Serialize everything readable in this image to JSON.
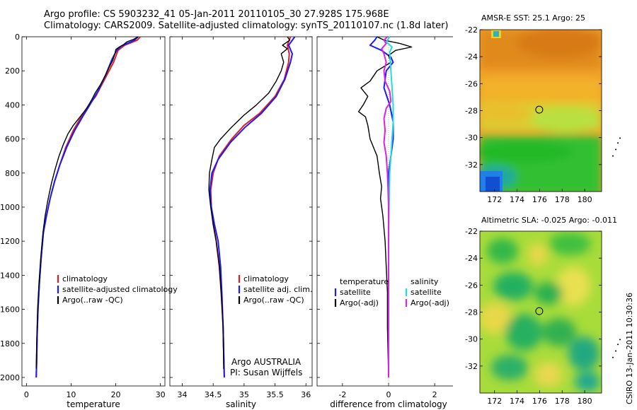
{
  "header": {
    "line1": "Argo profile: CS 5903232_41 05-Jan-2011 20110105_30 27.928S 175.968E",
    "line2": "Climatology: CARS2009. Satellite-adjusted climatology: synTS_20110107.nc (1.8d later)"
  },
  "credit": {
    "program": "Argo AUSTRALIA",
    "pi": "PI: Susan Wijffels"
  },
  "footer_stamp": "CSIRO 13-Jan-2011 10:30:36",
  "maps": {
    "sst_title": "AMSR-E SST: 25.1 Argo: 25",
    "sla_title": "Altimetric SLA: -0.025 Argo: -0.011",
    "lon_ticks": [
      "172",
      "174",
      "176",
      "178",
      "180"
    ],
    "lat_ticks": [
      "-22",
      "-24",
      "-26",
      "-28",
      "-30",
      "-32"
    ],
    "float_position": {
      "lon": 175.968,
      "lat": -27.928
    }
  },
  "colors": {
    "climatology": "#e02020",
    "satellite": "#1a1aff",
    "argo": "#000000",
    "sal_satellite": "#22dddd",
    "sal_argo": "#dd22dd"
  },
  "chart_data": [
    {
      "type": "line",
      "xlabel": "temperature",
      "ylabel": "",
      "xlim": [
        -1,
        31
      ],
      "ylim": [
        2050,
        0
      ],
      "xticks": [
        "0",
        "10",
        "20",
        "30"
      ],
      "yticks": [
        "0",
        "200",
        "400",
        "600",
        "800",
        "1000",
        "1200",
        "1400",
        "1600",
        "1800",
        "2000"
      ],
      "legend": {
        "placement": "bottom-right",
        "entries": [
          "climatology",
          "satellite-adjusted climatology",
          "Argo(..raw -QC)"
        ]
      },
      "series": [
        {
          "name": "climatology",
          "color": "#e02020",
          "points": [
            [
              25.5,
              0
            ],
            [
              24.8,
              20
            ],
            [
              22,
              50
            ],
            [
              20.5,
              80
            ],
            [
              19.5,
              150
            ],
            [
              17.5,
              250
            ],
            [
              15.5,
              350
            ],
            [
              14,
              400
            ],
            [
              12.5,
              460
            ],
            [
              10.5,
              550
            ],
            [
              8.8,
              650
            ],
            [
              7.5,
              750
            ],
            [
              6.3,
              850
            ],
            [
              5.3,
              950
            ],
            [
              4.5,
              1050
            ],
            [
              3.8,
              1150
            ],
            [
              3.3,
              1300
            ],
            [
              2.9,
              1450
            ],
            [
              2.6,
              1600
            ],
            [
              2.4,
              1750
            ],
            [
              2.3,
              1900
            ],
            [
              2.2,
              2000
            ]
          ]
        },
        {
          "name": "satellite-adjusted climatology",
          "color": "#1a1aff",
          "points": [
            [
              25,
              0
            ],
            [
              24.2,
              20
            ],
            [
              21.2,
              55
            ],
            [
              20.2,
              80
            ],
            [
              19.2,
              130
            ],
            [
              17.8,
              220
            ],
            [
              16,
              320
            ],
            [
              14.2,
              400
            ],
            [
              12.8,
              460
            ],
            [
              10.8,
              550
            ],
            [
              9,
              650
            ],
            [
              7.5,
              750
            ],
            [
              6.3,
              850
            ],
            [
              5.3,
              950
            ],
            [
              4.5,
              1050
            ],
            [
              3.8,
              1150
            ],
            [
              3.3,
              1300
            ],
            [
              2.9,
              1450
            ],
            [
              2.6,
              1600
            ],
            [
              2.4,
              1750
            ],
            [
              2.3,
              1900
            ],
            [
              2.2,
              2000
            ]
          ]
        },
        {
          "name": "Argo(..raw -QC)",
          "color": "#000000",
          "points": [
            [
              25,
              0
            ],
            [
              24,
              15
            ],
            [
              22.5,
              30
            ],
            [
              21.8,
              45
            ],
            [
              20.8,
              60
            ],
            [
              20,
              75
            ],
            [
              19.8,
              100
            ],
            [
              19.3,
              140
            ],
            [
              18.5,
              180
            ],
            [
              17.6,
              230
            ],
            [
              16.6,
              280
            ],
            [
              15.4,
              330
            ],
            [
              14.6,
              370
            ],
            [
              13.5,
              420
            ],
            [
              12,
              470
            ],
            [
              10.5,
              520
            ],
            [
              9.3,
              570
            ],
            [
              8.3,
              630
            ],
            [
              7.3,
              700
            ],
            [
              6.4,
              780
            ],
            [
              5.6,
              860
            ],
            [
              4.8,
              960
            ],
            [
              4.2,
              1050
            ],
            [
              3.7,
              1150
            ],
            [
              3.2,
              1300
            ],
            [
              2.8,
              1450
            ],
            [
              2.5,
              1600
            ],
            [
              2.3,
              1800
            ],
            [
              2.2,
              1950
            ]
          ]
        }
      ]
    },
    {
      "type": "line",
      "xlabel": "salinity",
      "ylabel": "",
      "xlim": [
        33.8,
        36.1
      ],
      "ylim": [
        2050,
        0
      ],
      "xticks": [
        "34",
        "34.5",
        "35",
        "35.5",
        "36"
      ],
      "legend": {
        "placement": "bottom-right",
        "entries": [
          "climatology",
          "satellite adj. clim.",
          "Argo(..raw -QC)"
        ]
      },
      "series": [
        {
          "name": "climatology",
          "color": "#e02020",
          "points": [
            [
              35.75,
              0
            ],
            [
              35.7,
              50
            ],
            [
              35.73,
              100
            ],
            [
              35.72,
              150
            ],
            [
              35.65,
              250
            ],
            [
              35.5,
              350
            ],
            [
              35.25,
              450
            ],
            [
              35,
              520
            ],
            [
              34.8,
              600
            ],
            [
              34.6,
              700
            ],
            [
              34.5,
              800
            ],
            [
              34.46,
              900
            ],
            [
              34.47,
              1000
            ],
            [
              34.5,
              1100
            ],
            [
              34.55,
              1200
            ],
            [
              34.6,
              1350
            ],
            [
              34.63,
              1500
            ],
            [
              34.66,
              1700
            ],
            [
              34.68,
              2000
            ]
          ]
        },
        {
          "name": "satellite adj. clim.",
          "color": "#1a1aff",
          "points": [
            [
              35.82,
              0
            ],
            [
              35.72,
              50
            ],
            [
              35.78,
              100
            ],
            [
              35.75,
              150
            ],
            [
              35.66,
              250
            ],
            [
              35.52,
              350
            ],
            [
              35.28,
              450
            ],
            [
              35.02,
              530
            ],
            [
              34.78,
              620
            ],
            [
              34.58,
              720
            ],
            [
              34.48,
              800
            ],
            [
              34.45,
              900
            ],
            [
              34.47,
              1000
            ],
            [
              34.52,
              1100
            ],
            [
              34.58,
              1200
            ],
            [
              34.62,
              1350
            ],
            [
              34.64,
              1500
            ],
            [
              34.66,
              1700
            ],
            [
              34.68,
              2000
            ]
          ]
        },
        {
          "name": "Argo(..raw -QC)",
          "color": "#000000",
          "points": [
            [
              35.7,
              0
            ],
            [
              35.74,
              20
            ],
            [
              35.62,
              50
            ],
            [
              35.7,
              70
            ],
            [
              35.6,
              100
            ],
            [
              35.64,
              150
            ],
            [
              35.6,
              200
            ],
            [
              35.52,
              260
            ],
            [
              35.4,
              330
            ],
            [
              35.2,
              400
            ],
            [
              35,
              460
            ],
            [
              34.8,
              530
            ],
            [
              34.62,
              600
            ],
            [
              34.52,
              650
            ],
            [
              34.48,
              720
            ],
            [
              34.44,
              800
            ],
            [
              34.43,
              900
            ],
            [
              34.46,
              1000
            ],
            [
              34.5,
              1100
            ],
            [
              34.55,
              1200
            ],
            [
              34.6,
              1350
            ],
            [
              34.63,
              1500
            ],
            [
              34.66,
              1700
            ],
            [
              34.67,
              1950
            ]
          ]
        }
      ]
    },
    {
      "type": "line",
      "xlabel": "difference from climatology",
      "ylabel": "",
      "xlim": [
        -3.1,
        3.1
      ],
      "ylim": [
        2050,
        0
      ],
      "xticks": [
        "-2",
        "0",
        "2"
      ],
      "legend": {
        "placement": "bottom",
        "groups": [
          {
            "title": "temperature",
            "entries": [
              "satellite",
              "Argo(-adj)"
            ]
          },
          {
            "title": "salinity",
            "entries": [
              "satellite",
              "Argo(-adj)"
            ]
          }
        ]
      },
      "series": [
        {
          "name": "temperature satellite",
          "color": "#1a1aff",
          "points": [
            [
              -0.5,
              0
            ],
            [
              -0.6,
              20
            ],
            [
              -0.8,
              50
            ],
            [
              -0.3,
              80
            ],
            [
              0.1,
              120
            ],
            [
              0.2,
              150
            ],
            [
              -0.1,
              200
            ],
            [
              -0.2,
              300
            ],
            [
              0.05,
              400
            ],
            [
              0.2,
              500
            ],
            [
              0.2,
              600
            ],
            [
              0.1,
              700
            ],
            [
              0,
              800
            ],
            [
              0,
              900
            ],
            [
              0,
              1000
            ],
            [
              0,
              1200
            ],
            [
              0,
              1500
            ],
            [
              0,
              1800
            ],
            [
              0,
              2000
            ]
          ]
        },
        {
          "name": "temperature Argo(-adj)",
          "color": "#000000",
          "points": [
            [
              -0.5,
              0
            ],
            [
              -0.2,
              20
            ],
            [
              0.5,
              40
            ],
            [
              1.0,
              60
            ],
            [
              0.3,
              80
            ],
            [
              0,
              110
            ],
            [
              0.1,
              150
            ],
            [
              -0.5,
              200
            ],
            [
              -0.8,
              260
            ],
            [
              -1.2,
              300
            ],
            [
              -0.9,
              350
            ],
            [
              -1.1,
              400
            ],
            [
              -1.3,
              440
            ],
            [
              -1.0,
              470
            ],
            [
              -0.9,
              520
            ],
            [
              -0.8,
              600
            ],
            [
              -0.5,
              700
            ],
            [
              -0.4,
              800
            ],
            [
              -0.3,
              880
            ],
            [
              -0.35,
              950
            ],
            [
              -0.25,
              1050
            ],
            [
              -0.15,
              1200
            ],
            [
              -0.1,
              1350
            ],
            [
              -0.05,
              1500
            ],
            [
              -0.05,
              1700
            ],
            [
              0,
              2000
            ]
          ]
        },
        {
          "name": "salinity satellite",
          "color": "#22dddd",
          "points": [
            [
              0.05,
              0
            ],
            [
              -0.1,
              30
            ],
            [
              0.15,
              60
            ],
            [
              0.05,
              90
            ],
            [
              0.08,
              150
            ],
            [
              0.1,
              200
            ],
            [
              0.15,
              300
            ],
            [
              0.2,
              400
            ],
            [
              0.2,
              500
            ],
            [
              0.15,
              600
            ],
            [
              0.1,
              700
            ],
            [
              0.05,
              800
            ],
            [
              0.02,
              1000
            ],
            [
              0,
              1200
            ],
            [
              0,
              1500
            ],
            [
              0,
              1800
            ],
            [
              0,
              2000
            ]
          ]
        },
        {
          "name": "salinity Argo(-adj)",
          "color": "#dd22dd",
          "points": [
            [
              -0.05,
              0
            ],
            [
              -0.2,
              20
            ],
            [
              -0.1,
              40
            ],
            [
              -0.3,
              70
            ],
            [
              -0.2,
              100
            ],
            [
              -0.1,
              150
            ],
            [
              -0.2,
              200
            ],
            [
              -0.15,
              260
            ],
            [
              0.05,
              320
            ],
            [
              0.1,
              380
            ],
            [
              -0.1,
              420
            ],
            [
              -0.2,
              480
            ],
            [
              -0.15,
              550
            ],
            [
              -0.2,
              620
            ],
            [
              -0.1,
              700
            ],
            [
              -0.05,
              800
            ],
            [
              -0.02,
              900
            ],
            [
              0,
              1000
            ],
            [
              0,
              1200
            ],
            [
              0,
              1500
            ],
            [
              0,
              2000
            ]
          ]
        }
      ]
    }
  ]
}
